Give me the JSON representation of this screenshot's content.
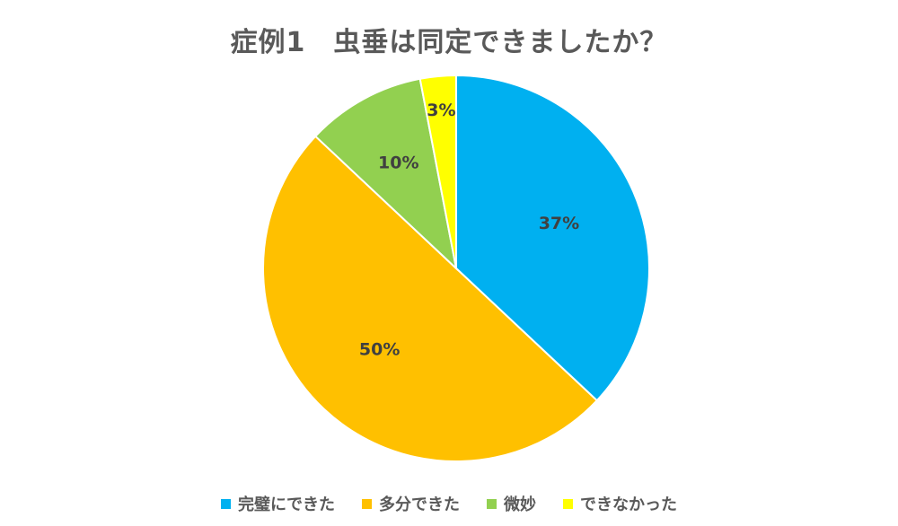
{
  "chart_data": {
    "type": "pie",
    "title": "症例1　虫垂は同定できましたか？",
    "categories": [
      "完璧にできた",
      "多分できた",
      "微妙",
      "できなかった"
    ],
    "values": [
      37,
      50,
      10,
      3
    ],
    "data_labels": [
      "37%",
      "50%",
      "10%",
      "3%"
    ],
    "colors": [
      "#00B0F0",
      "#FFC000",
      "#92D050",
      "#FFFF00"
    ],
    "legend_position": "bottom"
  }
}
